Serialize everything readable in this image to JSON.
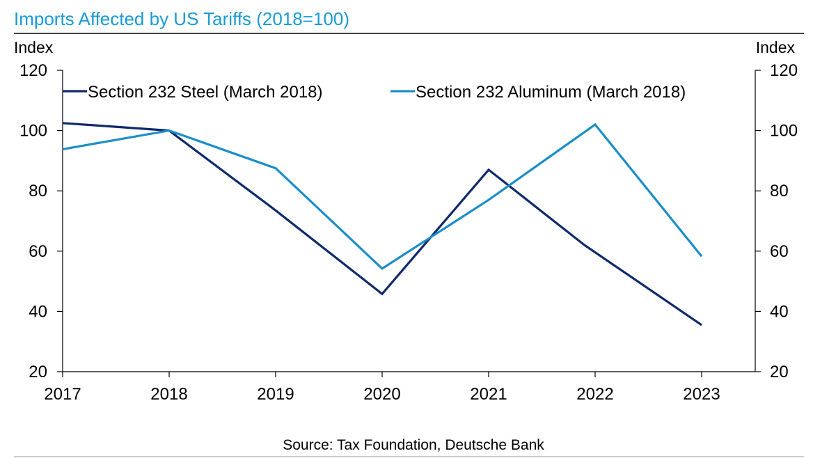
{
  "chart_data": {
    "type": "line",
    "title": "Imports Affected by US Tariffs (2018=100)",
    "ylabel_left": "Index",
    "ylabel_right": "Index",
    "x": [
      "2017",
      "2018",
      "2019",
      "2020",
      "2021",
      "2022",
      "2023"
    ],
    "ylim": [
      20,
      120
    ],
    "yticks": [
      20,
      40,
      60,
      80,
      100,
      120
    ],
    "series": [
      {
        "name": "Section 232 Steel (March 2018)",
        "color": "#0f2a6b",
        "values": [
          [
            0,
            102.5
          ],
          [
            1,
            100
          ],
          [
            2,
            73.5
          ],
          [
            3,
            45.8
          ],
          [
            4,
            87
          ],
          [
            4.9,
            62
          ],
          [
            6,
            35.5
          ]
        ]
      },
      {
        "name": "Section 232 Aluminum (March 2018)",
        "color": "#1a8ec8",
        "values": [
          [
            0,
            93.8
          ],
          [
            1,
            100
          ],
          [
            2,
            87.5
          ],
          [
            3,
            54.2
          ],
          [
            4,
            77
          ],
          [
            5,
            102
          ],
          [
            6,
            58.3
          ]
        ]
      }
    ],
    "legend_position": "top",
    "grid": false,
    "source": "Source:  Tax Foundation, Deutsche Bank"
  }
}
